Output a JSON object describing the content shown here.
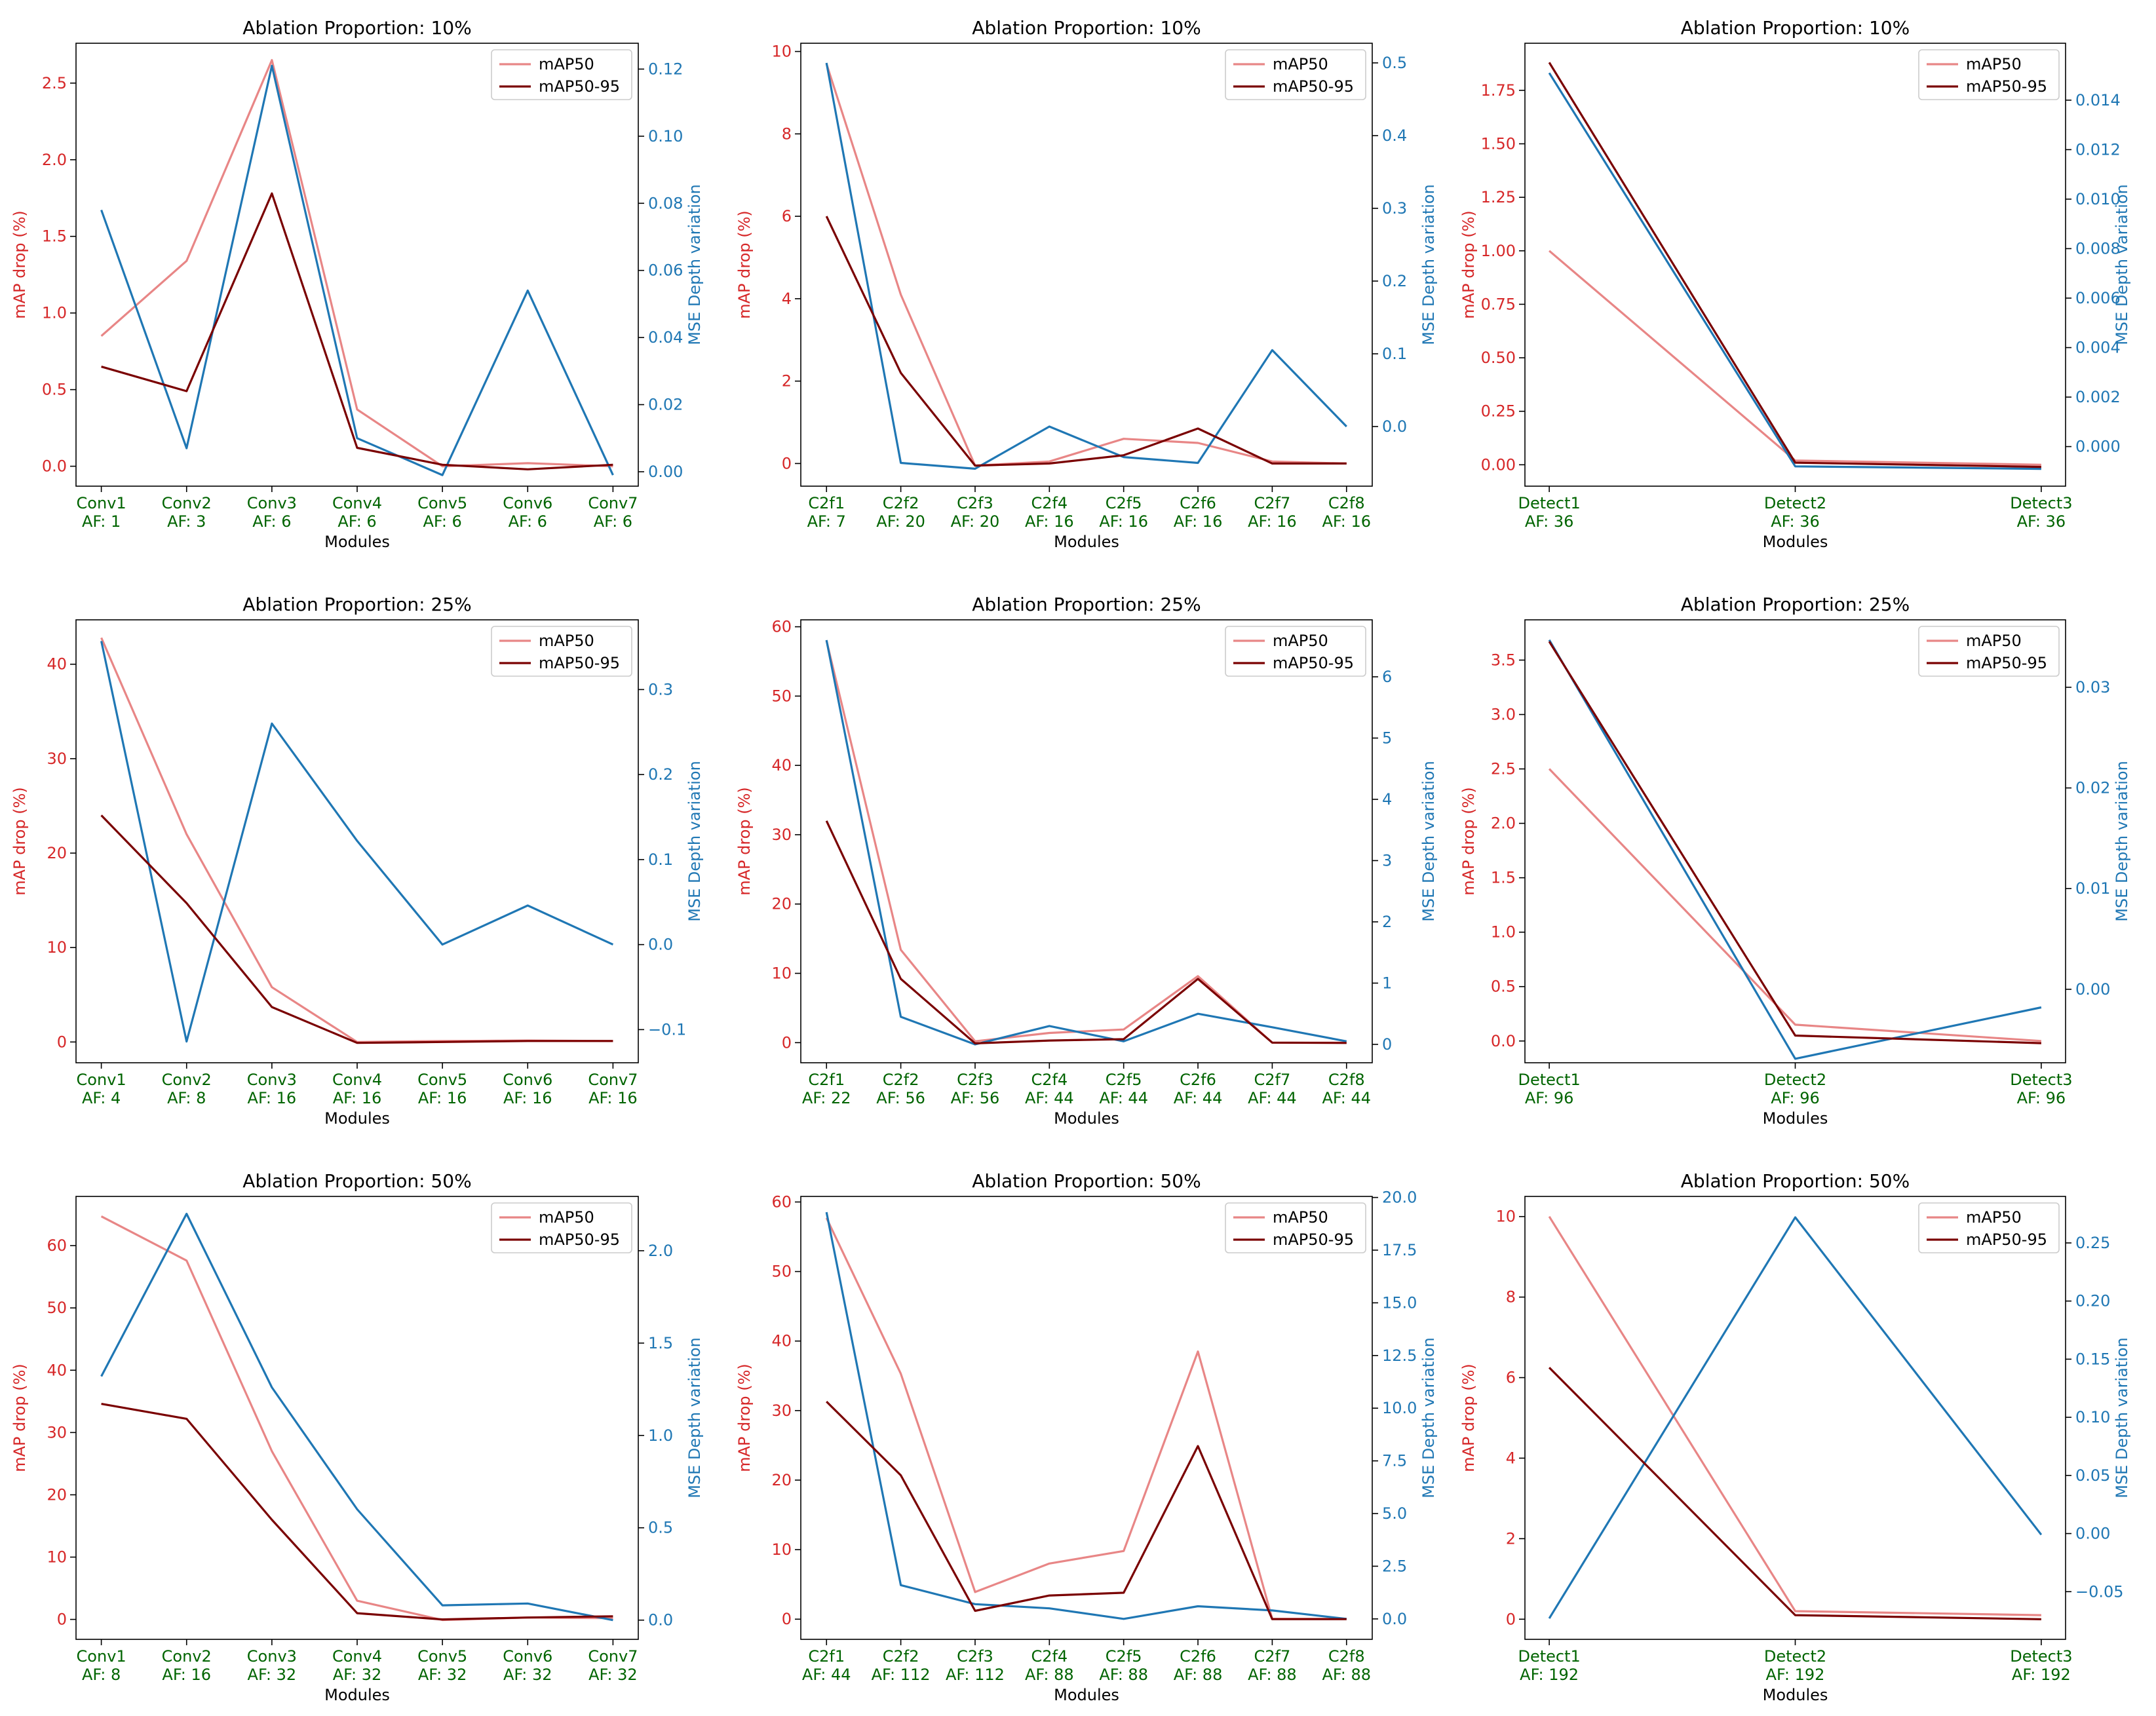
{
  "colors": {
    "map50": "#e88686",
    "map5095": "#7a0000",
    "mse": "#1f77b4",
    "left_axis": "#d62728",
    "right_axis": "#1f77b4",
    "xtick": "#006400"
  },
  "chart_data": [
    {
      "type": "line",
      "title": "Ablation Proportion: 10%",
      "xlabel": "Modules",
      "ylabel_left": "mAP drop (%)",
      "ylabel_right": "MSE Depth variation",
      "categories": [
        "Conv1",
        "Conv2",
        "Conv3",
        "Conv4",
        "Conv5",
        "Conv6",
        "Conv7"
      ],
      "af": [
        "AF: 1",
        "AF: 3",
        "AF: 6",
        "AF: 6",
        "AF: 6",
        "AF: 6",
        "AF: 6"
      ],
      "ylim_left": [
        -0.13,
        2.76
      ],
      "yticks_left": [
        "0.0",
        "0.5",
        "1.0",
        "1.5",
        "2.0",
        "2.5"
      ],
      "ylim_right": [
        -0.0043,
        0.1277
      ],
      "yticks_right": [
        "0.00",
        "0.02",
        "0.04",
        "0.06",
        "0.08",
        "0.10",
        "0.12"
      ],
      "legend": [
        "mAP50",
        "mAP50-95"
      ],
      "series": [
        {
          "name": "mAP50",
          "axis": "left",
          "values": [
            0.85,
            1.34,
            2.65,
            0.37,
            0.0,
            0.02,
            0.0
          ]
        },
        {
          "name": "mAP50-95",
          "axis": "left",
          "values": [
            0.65,
            0.49,
            1.78,
            0.12,
            0.01,
            -0.02,
            0.01
          ]
        },
        {
          "name": "MSE Depth variation",
          "axis": "right",
          "values": [
            0.078,
            0.007,
            0.121,
            0.01,
            -0.001,
            0.054,
            -0.001
          ]
        }
      ]
    },
    {
      "type": "line",
      "title": "Ablation Proportion: 10%",
      "xlabel": "Modules",
      "ylabel_left": "mAP drop (%)",
      "ylabel_right": "MSE Depth variation",
      "categories": [
        "C2f1",
        "C2f2",
        "C2f3",
        "C2f4",
        "C2f5",
        "C2f6",
        "C2f7",
        "C2f8"
      ],
      "af": [
        "AF: 7",
        "AF: 20",
        "AF: 20",
        "AF: 16",
        "AF: 16",
        "AF: 16",
        "AF: 16",
        "AF: 16"
      ],
      "ylim_left": [
        -0.55,
        10.2
      ],
      "yticks_left": [
        "0",
        "2",
        "4",
        "6",
        "8",
        "10"
      ],
      "ylim_right": [
        -0.082,
        0.527
      ],
      "yticks_right": [
        "0.0",
        "0.1",
        "0.2",
        "0.3",
        "0.4",
        "0.5"
      ],
      "legend": [
        "mAP50",
        "mAP50-95"
      ],
      "series": [
        {
          "name": "mAP50",
          "axis": "left",
          "values": [
            9.7,
            4.1,
            -0.05,
            0.05,
            0.6,
            0.5,
            0.05,
            0.0
          ]
        },
        {
          "name": "mAP50-95",
          "axis": "left",
          "values": [
            6.0,
            2.2,
            -0.05,
            0.0,
            0.2,
            0.85,
            0.0,
            0.0
          ]
        },
        {
          "name": "MSE Depth variation",
          "axis": "right",
          "values": [
            0.5,
            -0.05,
            -0.058,
            0.0,
            -0.042,
            -0.05,
            0.105,
            0.0
          ]
        }
      ]
    },
    {
      "type": "line",
      "title": "Ablation Proportion: 10%",
      "xlabel": "Modules",
      "ylabel_left": "mAP drop (%)",
      "ylabel_right": "MSE Depth variation",
      "categories": [
        "Detect1",
        "Detect2",
        "Detect3"
      ],
      "af": [
        "AF: 36",
        "AF: 36",
        "AF: 36"
      ],
      "ylim_left": [
        -0.1,
        1.97
      ],
      "yticks_left": [
        "0.00",
        "0.25",
        "0.50",
        "0.75",
        "1.00",
        "1.25",
        "1.50",
        "1.75"
      ],
      "ylim_right": [
        -0.0016,
        0.0163
      ],
      "yticks_right": [
        "0.000",
        "0.002",
        "0.004",
        "0.006",
        "0.008",
        "0.010",
        "0.012",
        "0.014"
      ],
      "legend": [
        "mAP50",
        "mAP50-95"
      ],
      "series": [
        {
          "name": "mAP50",
          "axis": "left",
          "values": [
            1.0,
            0.02,
            0.0
          ]
        },
        {
          "name": "mAP50-95",
          "axis": "left",
          "values": [
            1.88,
            0.01,
            -0.01
          ]
        },
        {
          "name": "MSE Depth variation",
          "axis": "right",
          "values": [
            0.0151,
            -0.0008,
            -0.0009
          ]
        }
      ]
    },
    {
      "type": "line",
      "title": "Ablation Proportion: 25%",
      "xlabel": "Modules",
      "ylabel_left": "mAP drop (%)",
      "ylabel_right": "MSE Depth variation",
      "categories": [
        "Conv1",
        "Conv2",
        "Conv3",
        "Conv4",
        "Conv5",
        "Conv6",
        "Conv7"
      ],
      "af": [
        "AF: 4",
        "AF: 8",
        "AF: 16",
        "AF: 16",
        "AF: 16",
        "AF: 16",
        "AF: 16"
      ],
      "ylim_left": [
        -2.2,
        44.7
      ],
      "yticks_left": [
        "0",
        "10",
        "20",
        "30",
        "40"
      ],
      "ylim_right": [
        -0.139,
        0.382
      ],
      "yticks_right": [
        "−0.1",
        "0.0",
        "0.1",
        "0.2",
        "0.3"
      ],
      "legend": [
        "mAP50",
        "mAP50-95"
      ],
      "series": [
        {
          "name": "mAP50",
          "axis": "left",
          "values": [
            42.8,
            22.0,
            5.8,
            0.0,
            0.1,
            0.15,
            0.1
          ]
        },
        {
          "name": "mAP50-95",
          "axis": "left",
          "values": [
            24.0,
            14.7,
            3.7,
            -0.1,
            0.0,
            0.1,
            0.1
          ]
        },
        {
          "name": "MSE Depth variation",
          "axis": "right",
          "values": [
            0.357,
            -0.114,
            0.26,
            0.122,
            0.0,
            0.046,
            0.0
          ]
        }
      ]
    },
    {
      "type": "line",
      "title": "Ablation Proportion: 25%",
      "xlabel": "Modules",
      "ylabel_left": "mAP drop (%)",
      "ylabel_right": "MSE Depth variation",
      "categories": [
        "C2f1",
        "C2f2",
        "C2f3",
        "C2f4",
        "C2f5",
        "C2f6",
        "C2f7",
        "C2f8"
      ],
      "af": [
        "AF: 22",
        "AF: 56",
        "AF: 56",
        "AF: 44",
        "AF: 44",
        "AF: 44",
        "AF: 44",
        "AF: 44"
      ],
      "ylim_left": [
        -2.9,
        61.0
      ],
      "yticks_left": [
        "0",
        "10",
        "20",
        "30",
        "40",
        "50",
        "60"
      ],
      "ylim_right": [
        -0.3,
        6.93
      ],
      "yticks_right": [
        "0",
        "1",
        "2",
        "3",
        "4",
        "5",
        "6"
      ],
      "legend": [
        "mAP50",
        "mAP50-95"
      ],
      "series": [
        {
          "name": "mAP50",
          "axis": "left",
          "values": [
            58.0,
            13.4,
            0.2,
            1.4,
            1.9,
            9.6,
            0.0,
            0.0
          ]
        },
        {
          "name": "mAP50-95",
          "axis": "left",
          "values": [
            32.0,
            9.2,
            -0.1,
            0.3,
            0.5,
            9.2,
            0.0,
            -0.05
          ]
        },
        {
          "name": "MSE Depth variation",
          "axis": "right",
          "values": [
            6.6,
            0.45,
            0.0,
            0.3,
            0.05,
            0.5,
            0.28,
            0.05
          ]
        }
      ]
    },
    {
      "type": "line",
      "title": "Ablation Proportion: 25%",
      "xlabel": "Modules",
      "ylabel_left": "mAP drop (%)",
      "ylabel_right": "MSE Depth variation",
      "categories": [
        "Detect1",
        "Detect2",
        "Detect3"
      ],
      "af": [
        "AF: 96",
        "AF: 96",
        "AF: 96"
      ],
      "ylim_left": [
        -0.2,
        3.87
      ],
      "yticks_left": [
        "0.0",
        "0.5",
        "1.0",
        "1.5",
        "2.0",
        "2.5",
        "3.0",
        "3.5"
      ],
      "ylim_right": [
        -0.0073,
        0.0367
      ],
      "yticks_right": [
        "0.00",
        "0.01",
        "0.02",
        "0.03"
      ],
      "legend": [
        "mAP50",
        "mAP50-95"
      ],
      "series": [
        {
          "name": "mAP50",
          "axis": "left",
          "values": [
            2.5,
            0.15,
            0.0
          ]
        },
        {
          "name": "mAP50-95",
          "axis": "left",
          "values": [
            3.67,
            0.05,
            -0.02
          ]
        },
        {
          "name": "MSE Depth variation",
          "axis": "right",
          "values": [
            0.0347,
            -0.0069,
            -0.0018
          ]
        }
      ]
    },
    {
      "type": "line",
      "title": "Ablation Proportion: 50%",
      "xlabel": "Modules",
      "ylabel_left": "mAP drop (%)",
      "ylabel_right": "MSE Depth variation",
      "categories": [
        "Conv1",
        "Conv2",
        "Conv3",
        "Conv4",
        "Conv5",
        "Conv6",
        "Conv7"
      ],
      "af": [
        "AF: 8",
        "AF: 16",
        "AF: 32",
        "AF: 32",
        "AF: 32",
        "AF: 32",
        "AF: 32"
      ],
      "ylim_left": [
        -3.2,
        67.9
      ],
      "yticks_left": [
        "0",
        "10",
        "20",
        "30",
        "40",
        "50",
        "60"
      ],
      "ylim_right": [
        -0.104,
        2.294
      ],
      "yticks_right": [
        "0.0",
        "0.5",
        "1.0",
        "1.5",
        "2.0"
      ],
      "legend": [
        "mAP50",
        "mAP50-95"
      ],
      "series": [
        {
          "name": "mAP50",
          "axis": "left",
          "values": [
            64.7,
            57.6,
            27.0,
            3.0,
            -0.1,
            0.3,
            0.2
          ]
        },
        {
          "name": "mAP50-95",
          "axis": "left",
          "values": [
            34.6,
            32.2,
            16.0,
            1.0,
            0.0,
            0.3,
            0.5
          ]
        },
        {
          "name": "MSE Depth variation",
          "axis": "right",
          "values": [
            1.32,
            2.2,
            1.26,
            0.6,
            0.08,
            0.09,
            0.0
          ]
        }
      ]
    },
    {
      "type": "line",
      "title": "Ablation Proportion: 50%",
      "xlabel": "Modules",
      "ylabel_left": "mAP drop (%)",
      "ylabel_right": "MSE Depth variation",
      "categories": [
        "C2f1",
        "C2f2",
        "C2f3",
        "C2f4",
        "C2f5",
        "C2f6",
        "C2f7",
        "C2f8"
      ],
      "af": [
        "AF: 44",
        "AF: 112",
        "AF: 112",
        "AF: 88",
        "AF: 88",
        "AF: 88",
        "AF: 88",
        "AF: 88"
      ],
      "ylim_left": [
        -2.9,
        60.8
      ],
      "yticks_left": [
        "0",
        "10",
        "20",
        "30",
        "40",
        "50",
        "60"
      ],
      "ylim_right": [
        -0.97,
        20.05
      ],
      "yticks_right": [
        "0.0",
        "2.5",
        "5.0",
        "7.5",
        "10.0",
        "12.5",
        "15.0",
        "17.5",
        "20.0"
      ],
      "legend": [
        "mAP50",
        "mAP50-95"
      ],
      "series": [
        {
          "name": "mAP50",
          "axis": "left",
          "values": [
            57.7,
            35.3,
            3.9,
            8.0,
            9.8,
            38.5,
            0.05,
            0.05
          ]
        },
        {
          "name": "mAP50-95",
          "axis": "left",
          "values": [
            31.3,
            20.7,
            1.2,
            3.4,
            3.8,
            24.9,
            0.0,
            0.0
          ]
        },
        {
          "name": "MSE Depth variation",
          "axis": "right",
          "values": [
            19.3,
            1.6,
            0.7,
            0.5,
            0.0,
            0.6,
            0.4,
            0.0
          ]
        }
      ]
    },
    {
      "type": "line",
      "title": "Ablation Proportion: 50%",
      "xlabel": "Modules",
      "ylabel_left": "mAP drop (%)",
      "ylabel_right": "MSE Depth variation",
      "categories": [
        "Detect1",
        "Detect2",
        "Detect3"
      ],
      "af": [
        "AF: 192",
        "AF: 192",
        "AF: 192"
      ],
      "ylim_left": [
        -0.5,
        10.5
      ],
      "yticks_left": [
        "0",
        "2",
        "4",
        "6",
        "8",
        "10"
      ],
      "ylim_right": [
        -0.091,
        0.29
      ],
      "yticks_right": [
        "−0.05",
        "0.00",
        "0.05",
        "0.10",
        "0.15",
        "0.20",
        "0.25"
      ],
      "legend": [
        "mAP50",
        "mAP50-95"
      ],
      "series": [
        {
          "name": "mAP50",
          "axis": "left",
          "values": [
            10.0,
            0.2,
            0.1
          ]
        },
        {
          "name": "mAP50-95",
          "axis": "left",
          "values": [
            6.25,
            0.1,
            0.0
          ]
        },
        {
          "name": "MSE Depth variation",
          "axis": "right",
          "values": [
            -0.073,
            0.272,
            -0.001
          ]
        }
      ]
    }
  ]
}
